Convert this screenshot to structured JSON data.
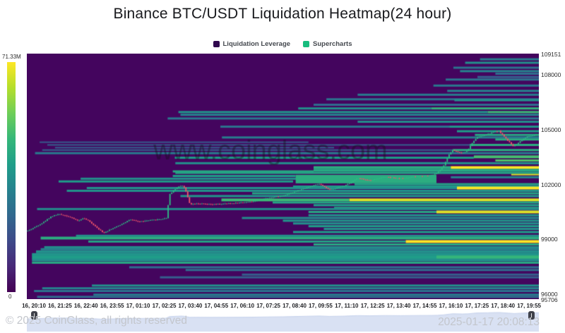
{
  "title": "Binance BTC/USDT Liquidation Heatmap(24 hour)",
  "legend": {
    "items": [
      {
        "label": "Liquidation Leverage",
        "color": "#30084e"
      },
      {
        "label": "Supercharts",
        "color": "#17bd7e"
      }
    ]
  },
  "colorbar": {
    "max_label": "71.33M",
    "min_label": "0"
  },
  "watermark": "www.coinglass.com",
  "footer": {
    "left": "© 2025 CoinGlass, all rights reserved",
    "right": "2025-01-17 20:08:13"
  },
  "chart_data": {
    "type": "heatmap",
    "title": "Binance BTC/USDT Liquidation Heatmap(24 hour)",
    "y_axis": {
      "ticks": [
        {
          "label": "109151",
          "value": 109151
        },
        {
          "label": "108000",
          "value": 108000
        },
        {
          "label": "105000",
          "value": 105000
        },
        {
          "label": "102000",
          "value": 102000
        },
        {
          "label": "99000",
          "value": 99000
        },
        {
          "label": "96000",
          "value": 96000
        },
        {
          "label": "95706",
          "value": 95706
        }
      ],
      "range": [
        95706,
        109151
      ]
    },
    "x_axis": {
      "ticks": [
        "16, 20:10",
        "16, 21:25",
        "16, 22:40",
        "16, 23:55",
        "17, 01:10",
        "17, 02:25",
        "17, 03:40",
        "17, 04:55",
        "17, 06:10",
        "17, 07:25",
        "17, 08:40",
        "17, 09:55",
        "17, 11:10",
        "17, 12:25",
        "17, 13:40",
        "17, 14:55",
        "17, 16:10",
        "17, 17:25",
        "17, 18:40",
        "17, 19:55"
      ]
    },
    "colors": {
      "background": "#44055e",
      "viridis": [
        "#440154",
        "#482878",
        "#3e4a89",
        "#31688e",
        "#26828e",
        "#1f9e89",
        "#35b779",
        "#6ece58",
        "#b5de2b",
        "#fde725"
      ],
      "candle_up": "#2ebd85",
      "candle_down": "#f2566a",
      "navigator_fill": "#d9e1f3",
      "navigator_line": "#c5d1ec"
    },
    "band_format": "[price, x_start_frac, x_end_frac, intensity_0to1, thickness_px]",
    "liquidation_bands": [
      [
        108840,
        0.885,
        1,
        0.42,
        3
      ],
      [
        108650,
        0.856,
        1,
        0.5,
        3
      ],
      [
        108380,
        0.833,
        1,
        0.38,
        3
      ],
      [
        108190,
        0.846,
        1,
        0.45,
        3
      ],
      [
        108050,
        0.915,
        1,
        0.35,
        3
      ],
      [
        107870,
        0.88,
        1,
        0.3,
        3
      ],
      [
        107730,
        0.818,
        1,
        0.38,
        3
      ],
      [
        107400,
        0.794,
        1,
        0.4,
        3
      ],
      [
        107110,
        0.821,
        1,
        0.45,
        3
      ],
      [
        106900,
        0.646,
        1,
        0.42,
        3
      ],
      [
        106650,
        0.585,
        1,
        0.38,
        3
      ],
      [
        106600,
        0.835,
        1,
        0.5,
        3
      ],
      [
        106350,
        0.56,
        1,
        0.35,
        3
      ],
      [
        106150,
        0.53,
        0.79,
        0.5,
        3
      ],
      [
        106150,
        0.79,
        1,
        0.65,
        3
      ],
      [
        105950,
        0.296,
        0.9,
        0.52,
        3
      ],
      [
        105950,
        0.9,
        1,
        0.68,
        3
      ],
      [
        105800,
        0.3,
        1,
        0.45,
        3
      ],
      [
        105600,
        0.275,
        1,
        0.4,
        3
      ],
      [
        105420,
        0.646,
        1,
        0.5,
        3
      ],
      [
        105150,
        0.378,
        0.825,
        0.38,
        3
      ],
      [
        105150,
        0.825,
        1,
        0.52,
        3
      ],
      [
        104900,
        0.84,
        1,
        0.55,
        3
      ],
      [
        104700,
        0.875,
        1,
        0.6,
        3
      ],
      [
        104560,
        0.381,
        1,
        0.42,
        3
      ],
      [
        104450,
        0.915,
        1,
        0.62,
        3
      ],
      [
        104300,
        0.025,
        0.55,
        0.28,
        2
      ],
      [
        104150,
        0.04,
        0.865,
        0.3,
        2
      ],
      [
        104150,
        0.865,
        1,
        0.62,
        3
      ],
      [
        104000,
        0.055,
        0.6,
        0.3,
        2
      ],
      [
        103870,
        0.03,
        0.832,
        0.32,
        2
      ],
      [
        103870,
        0.832,
        1,
        0.62,
        3
      ],
      [
        103700,
        0.016,
        1,
        0.42,
        3
      ],
      [
        103500,
        0.873,
        1,
        0.7,
        4
      ],
      [
        103450,
        0.289,
        0.873,
        0.55,
        3
      ],
      [
        103300,
        0.915,
        1,
        0.72,
        3
      ],
      [
        103150,
        0.29,
        1,
        0.5,
        3
      ],
      [
        102910,
        0.56,
        0.828,
        0.62,
        4
      ],
      [
        102910,
        0.828,
        1,
        1.0,
        4
      ],
      [
        102760,
        0.56,
        1,
        0.6,
        4
      ],
      [
        102700,
        0.285,
        0.56,
        0.6,
        3
      ],
      [
        102620,
        0.29,
        1,
        0.58,
        3
      ],
      [
        102525,
        0.946,
        1,
        0.95,
        2
      ],
      [
        102450,
        0.285,
        0.525,
        0.55,
        3
      ],
      [
        102380,
        0.828,
        1,
        0.45,
        3
      ],
      [
        102300,
        0.105,
        0.62,
        0.5,
        3
      ],
      [
        102280,
        0.525,
        0.8,
        0.62,
        12
      ],
      [
        102150,
        0.062,
        0.52,
        0.55,
        3
      ],
      [
        102000,
        0.64,
        1,
        0.58,
        3
      ],
      [
        101870,
        0.52,
        1,
        0.55,
        3
      ],
      [
        101790,
        0.117,
        0.84,
        0.5,
        3
      ],
      [
        101790,
        0.84,
        1,
        1.0,
        4
      ],
      [
        101640,
        0.078,
        1,
        0.52,
        3
      ],
      [
        101500,
        0.44,
        1,
        0.58,
        3
      ],
      [
        101350,
        0.3,
        1,
        0.52,
        3
      ],
      [
        101140,
        0.38,
        0.63,
        0.68,
        4
      ],
      [
        101140,
        0.63,
        1,
        0.95,
        4
      ],
      [
        101000,
        0.48,
        1,
        0.58,
        3
      ],
      [
        100850,
        0.56,
        1,
        0.55,
        3
      ],
      [
        100700,
        0.6,
        1,
        0.58,
        3
      ],
      [
        100640,
        0.02,
        1,
        0.48,
        3
      ],
      [
        100480,
        0.55,
        0.8,
        0.6,
        3
      ],
      [
        100480,
        0.8,
        1,
        0.95,
        4
      ],
      [
        100300,
        0.55,
        1,
        0.52,
        3
      ],
      [
        100150,
        0.42,
        1,
        0.48,
        3
      ],
      [
        100000,
        0.5,
        1,
        0.52,
        3
      ],
      [
        99850,
        0.52,
        1,
        0.5,
        3
      ],
      [
        99700,
        0.55,
        1,
        0.55,
        3
      ],
      [
        99550,
        0.58,
        1,
        0.5,
        3
      ],
      [
        99380,
        0.52,
        1,
        0.55,
        3
      ],
      [
        99175,
        0.096,
        1,
        0.5,
        3
      ],
      [
        99050,
        0.027,
        1,
        0.62,
        4
      ],
      [
        98860,
        0.12,
        0.74,
        0.58,
        3
      ],
      [
        98860,
        0.74,
        1,
        1.0,
        4
      ],
      [
        98700,
        0.56,
        1,
        0.6,
        3
      ],
      [
        98550,
        0.034,
        1,
        0.5,
        3
      ],
      [
        98440,
        0.027,
        1,
        0.45,
        3
      ],
      [
        98300,
        0.018,
        1,
        0.5,
        4
      ],
      [
        98150,
        0.01,
        1,
        0.52,
        4
      ],
      [
        98000,
        0.01,
        0.8,
        0.55,
        5
      ],
      [
        98000,
        0.8,
        1,
        0.66,
        5
      ],
      [
        97850,
        0.01,
        1,
        0.5,
        4
      ],
      [
        97700,
        0.01,
        1,
        0.6,
        3
      ],
      [
        97450,
        0.2,
        1,
        0.35,
        3
      ],
      [
        97300,
        0.31,
        1,
        0.35,
        3
      ],
      [
        97050,
        0.42,
        1,
        0.3,
        3
      ],
      [
        96900,
        0.26,
        1,
        0.3,
        3
      ],
      [
        96450,
        0.127,
        1,
        0.5,
        3
      ],
      [
        96300,
        0.03,
        1,
        0.45,
        3
      ],
      [
        96150,
        0.014,
        1,
        0.38,
        3
      ],
      [
        95950,
        0.13,
        1,
        0.42,
        3
      ],
      [
        95830,
        0.02,
        1,
        0.35,
        3
      ]
    ],
    "price_line": {
      "keypoint_format": "[time_frac_of_24h, price]",
      "keypoints": [
        [
          0.0,
          99450
        ],
        [
          0.012,
          99620
        ],
        [
          0.03,
          99900
        ],
        [
          0.045,
          100220
        ],
        [
          0.06,
          100360
        ],
        [
          0.075,
          100280
        ],
        [
          0.09,
          100110
        ],
        [
          0.1,
          99990
        ],
        [
          0.108,
          100140
        ],
        [
          0.118,
          100020
        ],
        [
          0.132,
          99710
        ],
        [
          0.148,
          99330
        ],
        [
          0.16,
          99500
        ],
        [
          0.178,
          99720
        ],
        [
          0.2,
          100060
        ],
        [
          0.218,
          99950
        ],
        [
          0.245,
          100040
        ],
        [
          0.262,
          100090
        ],
        [
          0.272,
          100150
        ],
        [
          0.278,
          101450
        ],
        [
          0.292,
          101800
        ],
        [
          0.302,
          101950
        ],
        [
          0.308,
          101780
        ],
        [
          0.318,
          100900
        ],
        [
          0.33,
          100950
        ],
        [
          0.36,
          100890
        ],
        [
          0.4,
          100950
        ],
        [
          0.44,
          101050
        ],
        [
          0.47,
          101240
        ],
        [
          0.5,
          101370
        ],
        [
          0.545,
          101800
        ],
        [
          0.571,
          102020
        ],
        [
          0.591,
          101700
        ],
        [
          0.62,
          101900
        ],
        [
          0.646,
          102330
        ],
        [
          0.67,
          102200
        ],
        [
          0.7,
          102400
        ],
        [
          0.73,
          102300
        ],
        [
          0.76,
          102420
        ],
        [
          0.79,
          102480
        ],
        [
          0.802,
          102600
        ],
        [
          0.815,
          103000
        ],
        [
          0.825,
          103580
        ],
        [
          0.832,
          103870
        ],
        [
          0.85,
          103700
        ],
        [
          0.862,
          103830
        ],
        [
          0.872,
          104300
        ],
        [
          0.88,
          104560
        ],
        [
          0.9,
          104720
        ],
        [
          0.915,
          104880
        ],
        [
          0.924,
          104910
        ],
        [
          0.94,
          104400
        ],
        [
          0.952,
          104080
        ],
        [
          0.965,
          104350
        ],
        [
          0.978,
          104600
        ],
        [
          1.0,
          104720
        ]
      ],
      "candle_count": 288
    }
  }
}
